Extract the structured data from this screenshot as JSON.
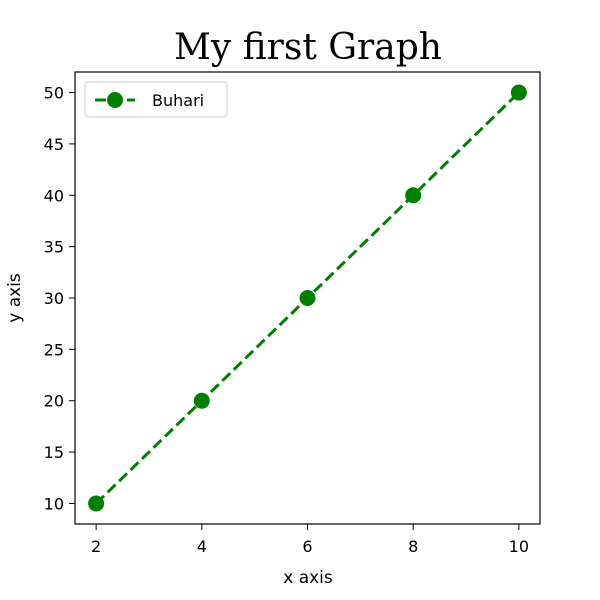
{
  "chart_data": {
    "type": "line",
    "title": "My first Graph",
    "xlabel": "x axis",
    "ylabel": "y axis",
    "x": [
      2,
      4,
      6,
      8,
      10
    ],
    "series": [
      {
        "name": "Buhari",
        "values": [
          10,
          20,
          30,
          40,
          50
        ],
        "color": "#008000",
        "line_style": "dashed",
        "marker": "circle"
      }
    ],
    "xlim": [
      1.6,
      10.4
    ],
    "ylim": [
      8,
      52
    ],
    "xticks": [
      2,
      4,
      6,
      8,
      10
    ],
    "yticks": [
      10,
      15,
      20,
      25,
      30,
      35,
      40,
      45,
      50
    ],
    "grid": false,
    "legend_position": "top-left"
  }
}
